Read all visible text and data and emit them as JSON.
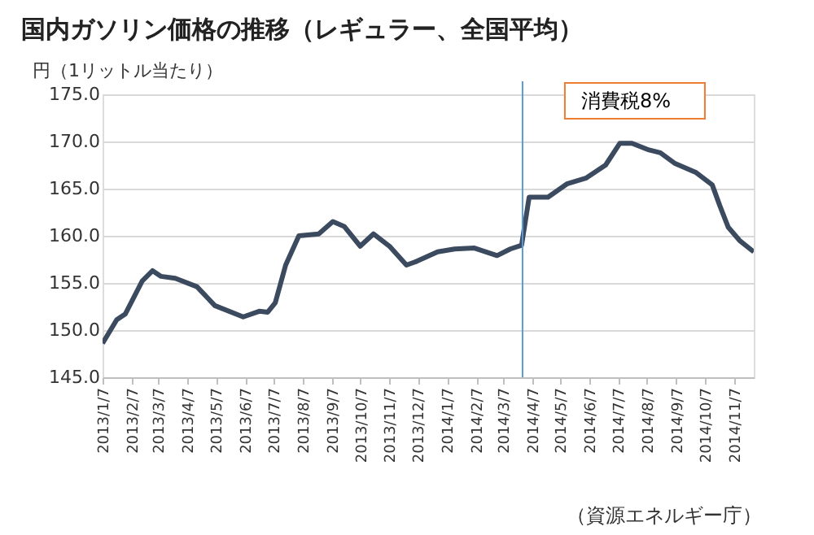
{
  "chart_data": {
    "type": "line",
    "title": "国内ガソリン価格の推移（レギュラー、全国平均）",
    "ylabel": "円（1リットル当たり）",
    "x": [
      "2013-01-07",
      "2013-01-22",
      "2013-01-31",
      "2013-02-18",
      "2013-03-01",
      "2013-03-10",
      "2013-03-25",
      "2013-04-17",
      "2013-05-06",
      "2013-06-05",
      "2013-06-22",
      "2013-07-01",
      "2013-07-09",
      "2013-07-20",
      "2013-08-03",
      "2013-08-24",
      "2013-09-08",
      "2013-09-20",
      "2013-10-07",
      "2013-10-21",
      "2013-11-07",
      "2013-11-25",
      "2013-12-06",
      "2013-12-28",
      "2014-01-15",
      "2014-02-05",
      "2014-03-01",
      "2014-03-15",
      "2014-03-27",
      "2014-04-04",
      "2014-04-24",
      "2014-05-14",
      "2014-06-03",
      "2014-06-24",
      "2014-07-09",
      "2014-07-22",
      "2014-08-09",
      "2014-08-21",
      "2014-09-05",
      "2014-09-28",
      "2014-10-15",
      "2014-10-23",
      "2014-11-01",
      "2014-11-13",
      "2014-11-28"
    ],
    "series": [
      {
        "color": "#3b4a5e",
        "values": [
          148.6,
          151.1,
          151.7,
          155.2,
          156.3,
          155.7,
          155.5,
          154.6,
          152.6,
          151.4,
          152.0,
          151.9,
          152.9,
          156.9,
          160.0,
          160.2,
          161.5,
          161.0,
          158.9,
          160.2,
          158.9,
          156.9,
          157.3,
          158.3,
          158.6,
          158.7,
          157.9,
          158.6,
          159.0,
          164.1,
          164.1,
          165.5,
          166.1,
          167.5,
          169.8,
          169.8,
          169.1,
          168.8,
          167.7,
          166.7,
          165.4,
          163.2,
          160.9,
          159.5,
          158.3
        ]
      }
    ],
    "xlim": [
      "2013-01-07",
      "2014-11-28"
    ],
    "xticks": [
      {
        "value": "2013-01-07",
        "label": "2013/1/7"
      },
      {
        "value": "2013-02-07",
        "label": "2013/2/7"
      },
      {
        "value": "2013-03-07",
        "label": "2013/3/7"
      },
      {
        "value": "2013-04-07",
        "label": "2013/4/7"
      },
      {
        "value": "2013-05-07",
        "label": "2013/5/7"
      },
      {
        "value": "2013-06-07",
        "label": "2013/6/7"
      },
      {
        "value": "2013-07-07",
        "label": "2013/7/7"
      },
      {
        "value": "2013-08-07",
        "label": "2013/8/7"
      },
      {
        "value": "2013-09-07",
        "label": "2013/9/7"
      },
      {
        "value": "2013-10-07",
        "label": "2013/10/7"
      },
      {
        "value": "2013-11-07",
        "label": "2013/11/7"
      },
      {
        "value": "2013-12-07",
        "label": "2013/12/7"
      },
      {
        "value": "2014-01-07",
        "label": "2014/1/7"
      },
      {
        "value": "2014-02-07",
        "label": "2014/2/7"
      },
      {
        "value": "2014-03-07",
        "label": "2014/3/7"
      },
      {
        "value": "2014-04-07",
        "label": "2014/4/7"
      },
      {
        "value": "2014-05-07",
        "label": "2014/5/7"
      },
      {
        "value": "2014-06-07",
        "label": "2014/6/7"
      },
      {
        "value": "2014-07-07",
        "label": "2014/7/7"
      },
      {
        "value": "2014-08-07",
        "label": "2014/8/7"
      },
      {
        "value": "2014-09-07",
        "label": "2014/9/7"
      },
      {
        "value": "2014-10-07",
        "label": "2014/10/7"
      },
      {
        "value": "2014-11-07",
        "label": "2014/11/7"
      }
    ],
    "ylim": [
      145,
      175
    ],
    "yticks": [
      {
        "value": 145,
        "label": "145.0"
      },
      {
        "value": 150,
        "label": "150.0"
      },
      {
        "value": 155,
        "label": "155.0"
      },
      {
        "value": 160,
        "label": "160.0"
      },
      {
        "value": 165,
        "label": "165.0"
      },
      {
        "value": 170,
        "label": "170.0"
      },
      {
        "value": 175,
        "label": "175.0"
      }
    ],
    "grid": "y",
    "legend": false,
    "marker": "none",
    "line_style": "solid",
    "ref_lines": [
      {
        "axis": "x",
        "value": "2014-03-28",
        "label": "消費税8%",
        "color": "#5b9bd5"
      }
    ],
    "annotations": [
      "（資源エネルギー庁）"
    ]
  }
}
